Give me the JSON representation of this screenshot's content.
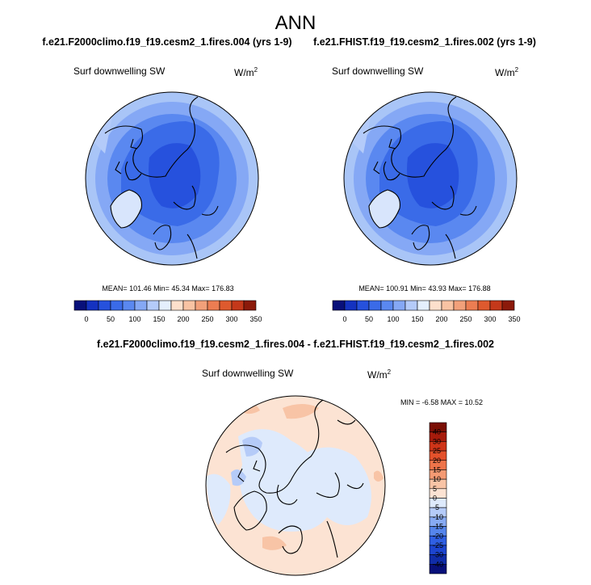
{
  "figure_title": "ANN",
  "panels": [
    {
      "case_title": "f.e21.F2000climo.f19_f19.cesm2_1.fires.004 (yrs 1-9)",
      "variable": "Surf downwelling SW",
      "units_base": "W/m",
      "units_exp": "2",
      "stats_text": "MEAN= 101.46  Min=  45.34  Max= 176.83"
    },
    {
      "case_title": "f.e21.FHIST.f19_f19.cesm2_1.fires.002 (yrs 1-9)",
      "variable": "Surf downwelling SW",
      "units_base": "W/m",
      "units_exp": "2",
      "stats_text": "MEAN= 100.91  Min=  43.93  Max= 176.88"
    }
  ],
  "diff_panel": {
    "case_title": "f.e21.F2000climo.f19_f19.cesm2_1.fires.004 - f.e21.FHIST.f19_f19.cesm2_1.fires.002",
    "variable": "Surf downwelling SW",
    "units_base": "W/m",
    "units_exp": "2",
    "stats_text": "MIN =  -6.58 MAX =  10.52"
  },
  "colors": {
    "abs_scale": [
      "#08107a",
      "#1432c0",
      "#2651dd",
      "#3a6be8",
      "#5a88f0",
      "#85a8f5",
      "#b4cbf9",
      "#e4effd",
      "#fde0cc",
      "#f8c3a3",
      "#f2a07a",
      "#ec7d52",
      "#de5a2e",
      "#c4381a",
      "#8c1a0a"
    ],
    "diff_scale": [
      "#08107a",
      "#102ca8",
      "#1c44cf",
      "#2f5fe3",
      "#5585ec",
      "#87aaf3",
      "#b5cbf8",
      "#deeafc",
      "#fce3d3",
      "#f8c4a6",
      "#f49a73",
      "#ee744a",
      "#e4512b",
      "#cf3418",
      "#a61b0b",
      "#7a0f04"
    ]
  },
  "chart_data": [
    {
      "type": "heatmap",
      "projection": "north-polar-stereographic",
      "title": "Surf downwelling SW",
      "subtitle": "f.e21.F2000climo.f19_f19.cesm2_1.fires.004 (yrs 1-9)",
      "units": "W/m2",
      "mean": 101.46,
      "min": 45.34,
      "max": 176.83,
      "colorbar_ticks": [
        0,
        50,
        100,
        150,
        200,
        250,
        300,
        350
      ],
      "colorbar_range": [
        -25,
        350
      ],
      "colorbar_levels": 15
    },
    {
      "type": "heatmap",
      "projection": "north-polar-stereographic",
      "title": "Surf downwelling SW",
      "subtitle": "f.e21.FHIST.f19_f19.cesm2_1.fires.002 (yrs 1-9)",
      "units": "W/m2",
      "mean": 100.91,
      "min": 43.93,
      "max": 176.88,
      "colorbar_ticks": [
        0,
        50,
        100,
        150,
        200,
        250,
        300,
        350
      ],
      "colorbar_range": [
        -25,
        350
      ],
      "colorbar_levels": 15
    },
    {
      "type": "heatmap",
      "projection": "north-polar-stereographic",
      "title": "Surf downwelling SW",
      "subtitle": "f.e21.F2000climo.f19_f19.cesm2_1.fires.004 - f.e21.FHIST.f19_f19.cesm2_1.fires.002",
      "units": "W/m2",
      "min": -6.58,
      "max": 10.52,
      "colorbar_ticks": [
        40,
        30,
        25,
        20,
        15,
        10,
        5,
        0,
        -5,
        -10,
        -15,
        -20,
        -25,
        -30,
        -40
      ],
      "colorbar_levels": 16
    }
  ]
}
